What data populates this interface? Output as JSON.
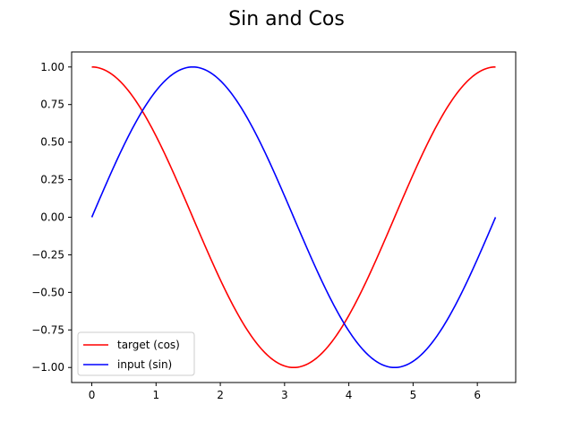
{
  "chart_data": {
    "type": "line",
    "title": "Sin and Cos",
    "xlabel": "",
    "ylabel": "",
    "xlim": [
      -0.314,
      6.597
    ],
    "ylim": [
      -1.1,
      1.1
    ],
    "x_ticks": [
      0,
      1,
      2,
      3,
      4,
      5,
      6
    ],
    "x_tick_labels": [
      "0",
      "1",
      "2",
      "3",
      "4",
      "5",
      "6"
    ],
    "y_ticks": [
      -1.0,
      -0.75,
      -0.5,
      -0.25,
      0.0,
      0.25,
      0.5,
      0.75,
      1.0
    ],
    "y_tick_labels": [
      "−1.00",
      "−0.75",
      "−0.50",
      "−0.25",
      "0.00",
      "0.25",
      "0.50",
      "0.75",
      "1.00"
    ],
    "grid": false,
    "legend": {
      "placement": "lower-left"
    },
    "x_range": [
      0,
      6.2832
    ],
    "series": [
      {
        "name": "target (cos)",
        "function": "cos",
        "color": "#ff0000"
      },
      {
        "name": "input (sin)",
        "function": "sin",
        "color": "#0000ff"
      }
    ]
  }
}
